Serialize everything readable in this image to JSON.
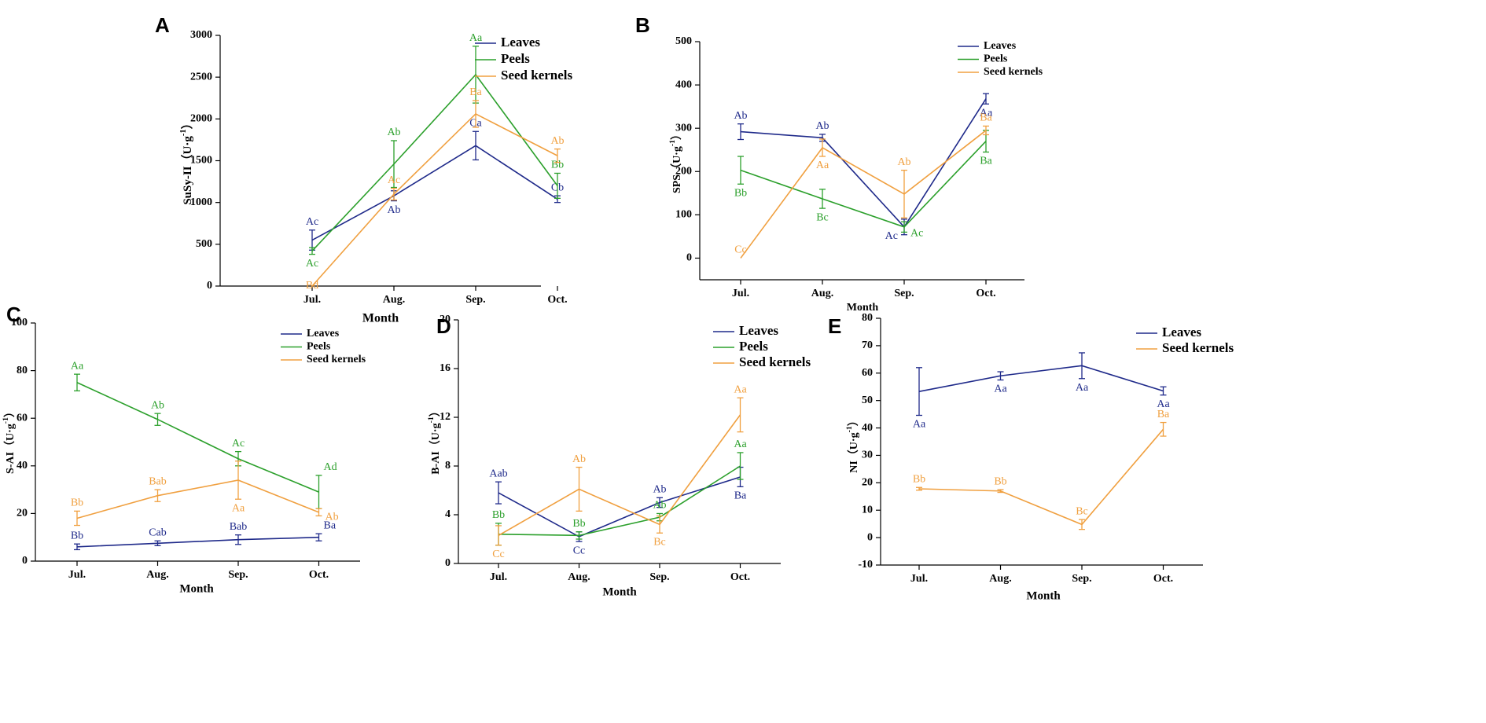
{
  "colors": {
    "leaves": "#1f2a8a",
    "peels": "#2ca02c",
    "seed": "#f0a040",
    "axis": "#000000"
  },
  "chart_data": [
    {
      "panel": "A",
      "type": "line",
      "categories": [
        "Jul.",
        "Aug.",
        "Sep.",
        "Oct."
      ],
      "xlabel": "Month",
      "ylabel": "SuSy-II（U·g",
      "ylabel_sup": "-1",
      "ylabel_end": "）",
      "ylim": [
        0,
        3000
      ],
      "yticks": [
        0,
        500,
        1000,
        1500,
        2000,
        2500,
        3000
      ],
      "series": [
        {
          "key": "leaves",
          "name": "Leaves",
          "values": [
            550,
            1080,
            1680,
            1040
          ],
          "errors": [
            120,
            60,
            170,
            40
          ],
          "labels": [
            "Ac",
            "Ab",
            "Ca",
            "Cb"
          ],
          "labelPos": [
            "above",
            "below",
            "above",
            "above"
          ]
        },
        {
          "key": "peels",
          "name": "Peels",
          "values": [
            420,
            1460,
            2530,
            1200
          ],
          "errors": [
            40,
            280,
            340,
            150
          ],
          "labels": [
            "Ac",
            "Ab",
            "Aa",
            "Bb"
          ],
          "labelPos": [
            "below",
            "above",
            "above",
            "above"
          ]
        },
        {
          "key": "seed",
          "name": "Seed kernels",
          "values": [
            0,
            1100,
            2060,
            1560
          ],
          "errors": [
            0,
            70,
            160,
            80
          ],
          "labels": [
            "Bd",
            "Ac",
            "Ba",
            "Ab"
          ],
          "labelPos": [
            "at",
            "above",
            "above",
            "above"
          ]
        }
      ]
    },
    {
      "panel": "B",
      "type": "line",
      "categories": [
        "Jul.",
        "Aug.",
        "Sep.",
        "Oct."
      ],
      "xlabel": "Month",
      "ylabel": "SPS（U·g",
      "ylabel_sup": "-1",
      "ylabel_end": "）",
      "ylim": [
        -50,
        500
      ],
      "yticks": [
        0,
        100,
        200,
        300,
        400,
        500
      ],
      "series": [
        {
          "key": "leaves",
          "name": "Leaves",
          "values": [
            292,
            278,
            72,
            368
          ],
          "errors": [
            18,
            8,
            18,
            12
          ],
          "labels": [
            "Ab",
            "Ab",
            "Ac",
            "Aa"
          ],
          "labelPos": [
            "above",
            "above",
            "belowleft",
            "below"
          ]
        },
        {
          "key": "peels",
          "name": "Peels",
          "values": [
            203,
            137,
            72,
            270
          ],
          "errors": [
            32,
            22,
            12,
            25
          ],
          "labels": [
            "Bb",
            "Bc",
            "Ac",
            "Ba"
          ],
          "labelPos": [
            "below",
            "below",
            "belowright",
            "below"
          ]
        },
        {
          "key": "seed",
          "name": "Seed kernels",
          "values": [
            0,
            255,
            148,
            295
          ],
          "errors": [
            0,
            20,
            55,
            10
          ],
          "labels": [
            "Cc",
            "Aa",
            "Ab",
            "Ba"
          ],
          "labelPos": [
            "above",
            "below",
            "above",
            "above"
          ]
        }
      ]
    },
    {
      "panel": "C",
      "type": "line",
      "categories": [
        "Jul.",
        "Aug.",
        "Sep.",
        "Oct."
      ],
      "xlabel": "Month",
      "ylabel": "S-AI（U·g",
      "ylabel_sup": "-1",
      "ylabel_end": "）",
      "ylim": [
        0,
        100
      ],
      "yticks": [
        0,
        20,
        40,
        60,
        80,
        100
      ],
      "series": [
        {
          "key": "leaves",
          "name": "Leaves",
          "values": [
            6,
            7.5,
            9,
            10
          ],
          "errors": [
            1.2,
            1,
            2,
            1.5
          ],
          "labels": [
            "Bb",
            "Cab",
            "Bab",
            "Ba"
          ],
          "labelPos": [
            "above",
            "above",
            "above",
            "aboveright"
          ]
        },
        {
          "key": "peels",
          "name": "Peels",
          "values": [
            75,
            59.5,
            43,
            29
          ],
          "errors": [
            3.5,
            2.5,
            3,
            7
          ],
          "labels": [
            "Aa",
            "Ab",
            "Ac",
            "Ad"
          ],
          "labelPos": [
            "above",
            "above",
            "above",
            "aboveright"
          ]
        },
        {
          "key": "seed",
          "name": "Seed kernels",
          "values": [
            18,
            27.5,
            34,
            20.5
          ],
          "errors": [
            3,
            2.5,
            8,
            1.5
          ],
          "labels": [
            "Bb",
            "Bab",
            "Aa",
            "Ab"
          ],
          "labelPos": [
            "above",
            "above",
            "below",
            "belowright"
          ]
        }
      ]
    },
    {
      "panel": "D",
      "type": "line",
      "categories": [
        "Jul.",
        "Aug.",
        "Sep.",
        "Oct."
      ],
      "xlabel": "Month",
      "ylabel": "B-AI（U·g",
      "ylabel_sup": "-1",
      "ylabel_end": "）",
      "ylim": [
        0,
        20
      ],
      "yticks": [
        0,
        4,
        8,
        12,
        16,
        20
      ],
      "series": [
        {
          "key": "leaves",
          "name": "Leaves",
          "values": [
            5.8,
            2.2,
            5,
            7.1
          ],
          "errors": [
            0.9,
            0.4,
            0.4,
            0.8
          ],
          "labels": [
            "Aab",
            "Cc",
            "Ab",
            "Ba"
          ],
          "labelPos": [
            "above",
            "below",
            "above",
            "below"
          ]
        },
        {
          "key": "peels",
          "name": "Peels",
          "values": [
            2.4,
            2.3,
            3.8,
            8
          ],
          "errors": [
            0.9,
            0.3,
            0.3,
            1.1
          ],
          "labels": [
            "Bb",
            "Bb",
            "Ab",
            "Aa"
          ],
          "labelPos": [
            "above",
            "above",
            "above",
            "above"
          ]
        },
        {
          "key": "seed",
          "name": "Seed kernels",
          "values": [
            2.3,
            6.1,
            3.2,
            12.2
          ],
          "errors": [
            0.8,
            1.8,
            0.7,
            1.4
          ],
          "labels": [
            "Cc",
            "Ab",
            "Bc",
            "Aa"
          ],
          "labelPos": [
            "below",
            "above",
            "below",
            "above"
          ]
        }
      ]
    },
    {
      "panel": "E",
      "type": "line",
      "categories": [
        "Jul.",
        "Aug.",
        "Sep.",
        "Oct."
      ],
      "xlabel": "Month",
      "ylabel": "NI（U·g",
      "ylabel_sup": "-1",
      "ylabel_end": "）",
      "ylim": [
        -10,
        80
      ],
      "yticks": [
        -10,
        0,
        10,
        20,
        30,
        40,
        50,
        60,
        70,
        80
      ],
      "series": [
        {
          "key": "leaves",
          "name": "Leaves",
          "values": [
            53.3,
            59,
            62.7,
            53.5
          ],
          "errors": [
            8.7,
            1.5,
            4.7,
            1.5
          ],
          "labels": [
            "Aa",
            "Aa",
            "Aa",
            "Aa"
          ],
          "labelPos": [
            "below",
            "below",
            "below",
            "below"
          ]
        },
        {
          "key": "seed",
          "name": "Seed kernels",
          "values": [
            17.8,
            17,
            4.8,
            39.5
          ],
          "errors": [
            0.5,
            0.5,
            1.8,
            2.5
          ],
          "labels": [
            "Bb",
            "Bb",
            "Bc",
            "Ba"
          ],
          "labelPos": [
            "above",
            "above",
            "above",
            "above"
          ]
        }
      ]
    }
  ]
}
